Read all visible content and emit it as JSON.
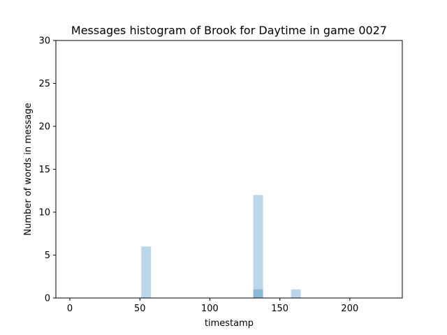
{
  "chart_data": {
    "type": "bar",
    "title": "Messages histogram of Brook for Daytime in game 0027",
    "xlabel": "timestamp",
    "ylabel": "Number of words in message",
    "xlim": [
      -10,
      237.5
    ],
    "ylim": [
      0,
      30
    ],
    "xticks": [
      0,
      50,
      100,
      150,
      200
    ],
    "yticks": [
      0,
      5,
      10,
      15,
      20,
      25,
      30
    ],
    "grid": false,
    "bar_color": "#1f77b4",
    "bar_opacity": 0.3,
    "series": [
      {
        "bins": [
          {
            "x0": 51,
            "x1": 58,
            "value": 6
          },
          {
            "x0": 131,
            "x1": 138,
            "value": 12
          },
          {
            "x0": 158,
            "x1": 165,
            "value": 1
          }
        ]
      },
      {
        "bins": [
          {
            "x0": 131,
            "x1": 138,
            "value": 1
          }
        ]
      }
    ]
  }
}
